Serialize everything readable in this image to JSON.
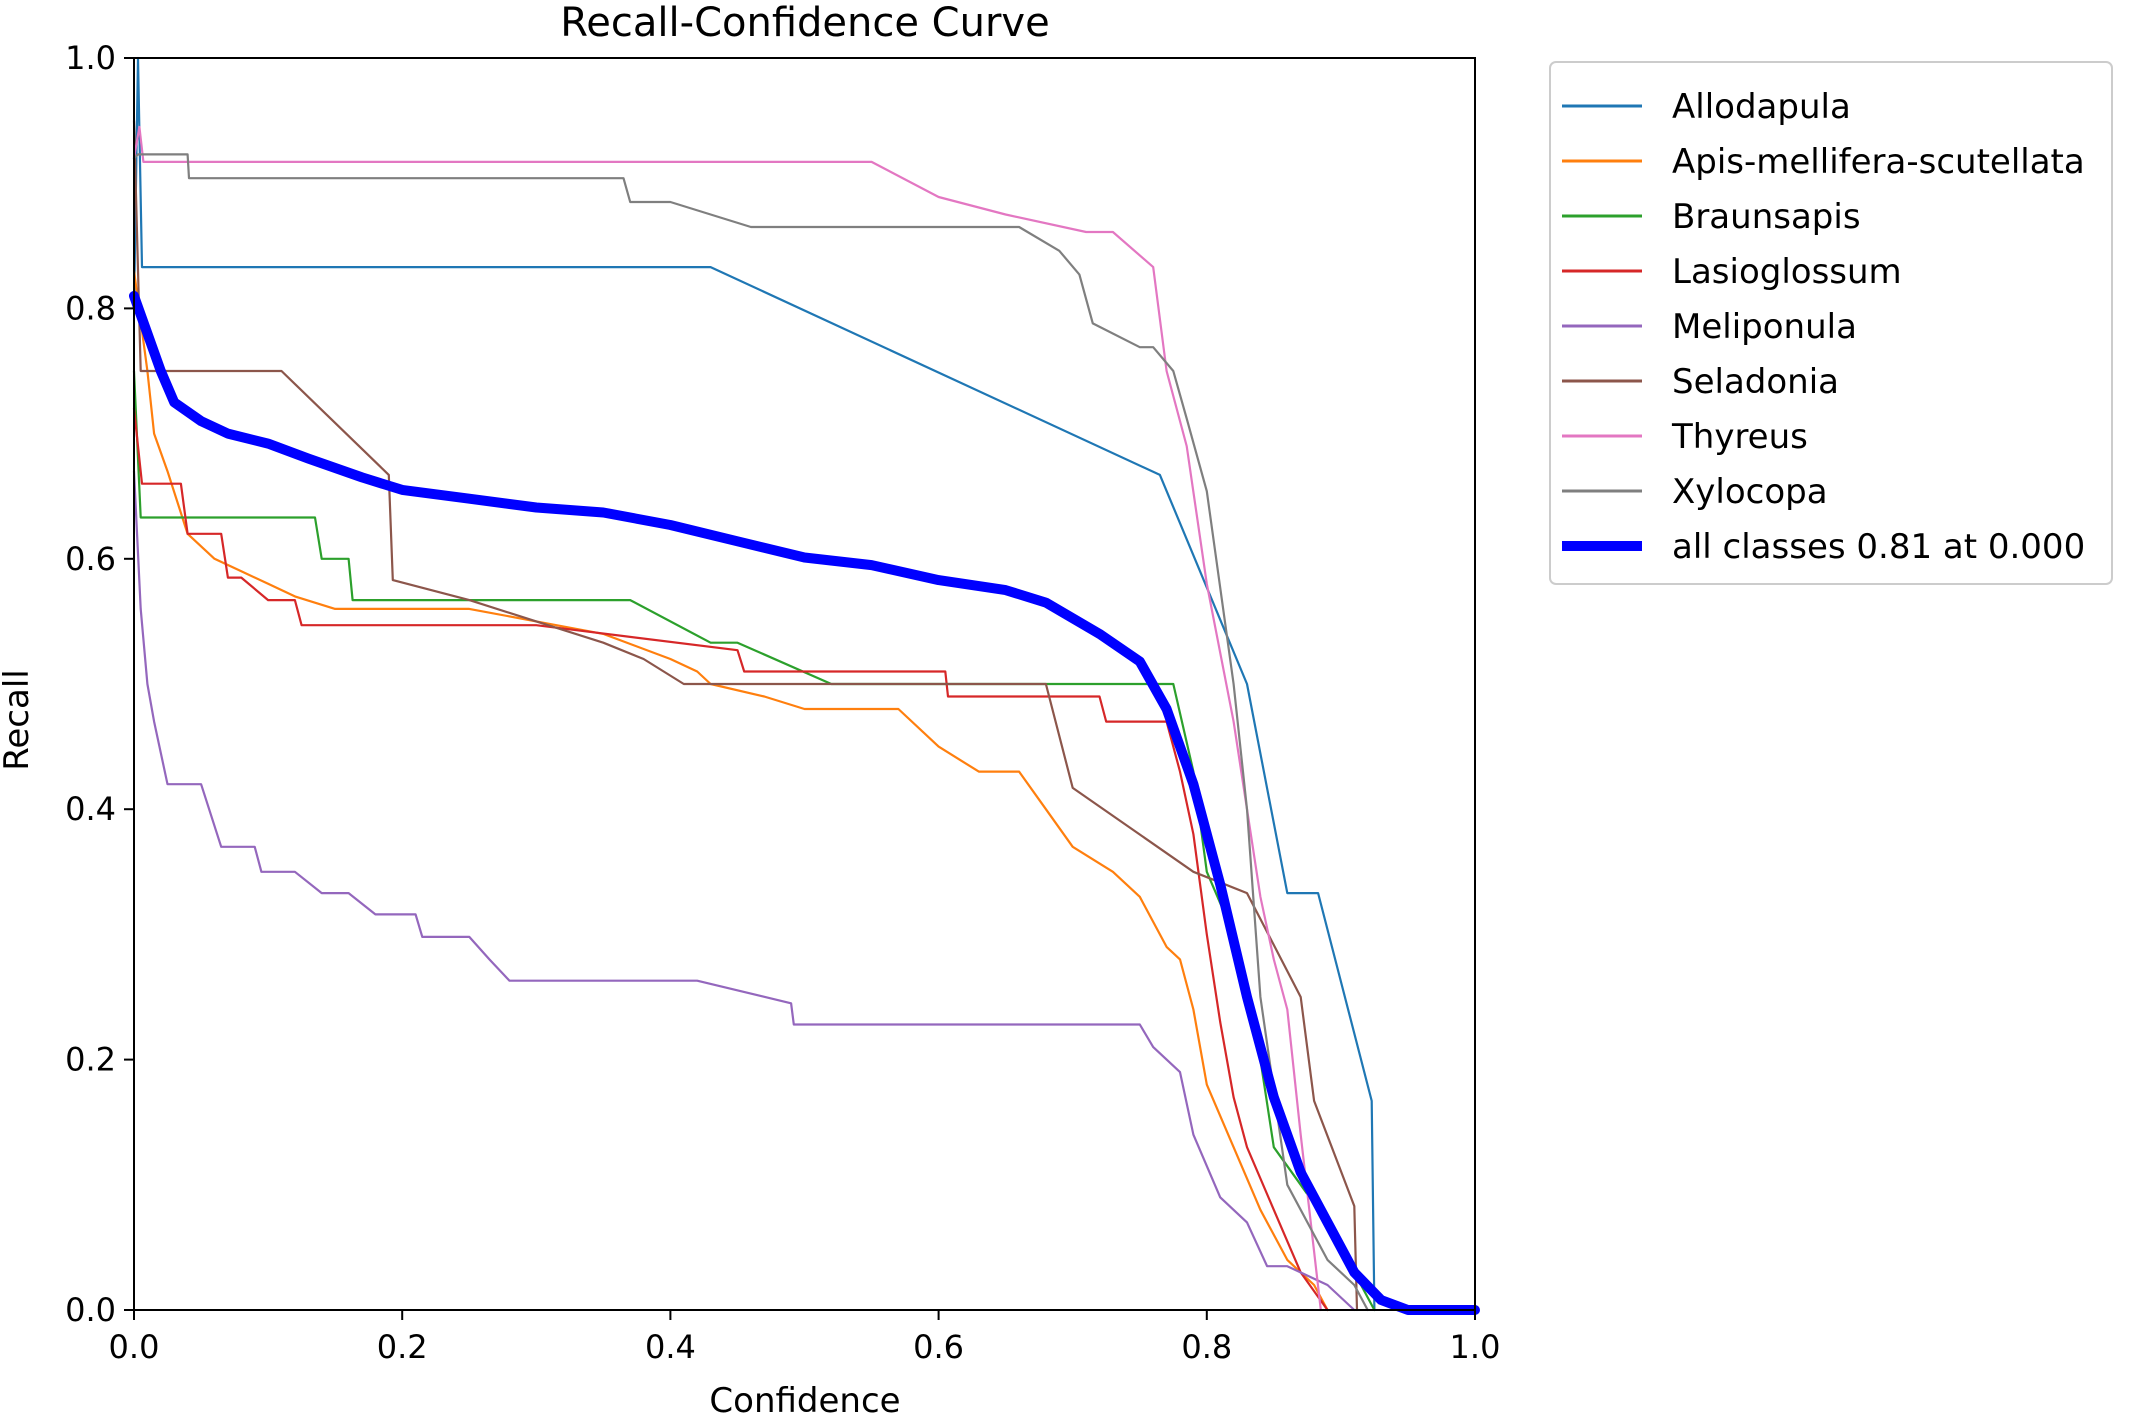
{
  "chart_data": {
    "type": "line",
    "title": "Recall-Confidence Curve",
    "xlabel": "Confidence",
    "ylabel": "Recall",
    "xlim": [
      0,
      1
    ],
    "ylim": [
      0,
      1
    ],
    "xticks": [
      "0.0",
      "0.2",
      "0.4",
      "0.6",
      "0.8",
      "1.0"
    ],
    "yticks": [
      "0.0",
      "0.2",
      "0.4",
      "0.6",
      "0.8",
      "1.0"
    ],
    "grid": false,
    "legend_position": "outside-top-right",
    "series": [
      {
        "name": "Allodapula",
        "color": "#1f77b4",
        "points": [
          [
            0,
            0.8
          ],
          [
            0.003,
            1.0
          ],
          [
            0.006,
            0.833
          ],
          [
            0.43,
            0.833
          ],
          [
            0.765,
            0.667
          ],
          [
            0.83,
            0.5
          ],
          [
            0.86,
            0.333
          ],
          [
            0.883,
            0.333
          ],
          [
            0.923,
            0.167
          ],
          [
            0.925,
            0.0
          ]
        ]
      },
      {
        "name": "Apis-mellifera-scutellata",
        "color": "#ff7f0e",
        "points": [
          [
            0,
            0.83
          ],
          [
            0.01,
            0.75
          ],
          [
            0.015,
            0.7
          ],
          [
            0.025,
            0.67
          ],
          [
            0.04,
            0.62
          ],
          [
            0.06,
            0.6
          ],
          [
            0.08,
            0.59
          ],
          [
            0.1,
            0.58
          ],
          [
            0.12,
            0.57
          ],
          [
            0.15,
            0.56
          ],
          [
            0.25,
            0.56
          ],
          [
            0.3,
            0.55
          ],
          [
            0.35,
            0.54
          ],
          [
            0.4,
            0.52
          ],
          [
            0.42,
            0.51
          ],
          [
            0.43,
            0.5
          ],
          [
            0.47,
            0.49
          ],
          [
            0.5,
            0.48
          ],
          [
            0.57,
            0.48
          ],
          [
            0.6,
            0.45
          ],
          [
            0.63,
            0.43
          ],
          [
            0.66,
            0.43
          ],
          [
            0.68,
            0.4
          ],
          [
            0.7,
            0.37
          ],
          [
            0.73,
            0.35
          ],
          [
            0.75,
            0.33
          ],
          [
            0.77,
            0.29
          ],
          [
            0.78,
            0.28
          ],
          [
            0.79,
            0.24
          ],
          [
            0.8,
            0.18
          ],
          [
            0.82,
            0.13
          ],
          [
            0.84,
            0.08
          ],
          [
            0.86,
            0.04
          ],
          [
            0.88,
            0.02
          ],
          [
            0.89,
            0.0
          ]
        ]
      },
      {
        "name": "Braunsapis",
        "color": "#2ca02c",
        "points": [
          [
            0,
            0.75
          ],
          [
            0.005,
            0.633
          ],
          [
            0.135,
            0.633
          ],
          [
            0.14,
            0.6
          ],
          [
            0.16,
            0.6
          ],
          [
            0.163,
            0.567
          ],
          [
            0.37,
            0.567
          ],
          [
            0.43,
            0.533
          ],
          [
            0.45,
            0.533
          ],
          [
            0.52,
            0.5
          ],
          [
            0.775,
            0.5
          ],
          [
            0.79,
            0.43
          ],
          [
            0.8,
            0.35
          ],
          [
            0.82,
            0.3
          ],
          [
            0.84,
            0.2
          ],
          [
            0.85,
            0.13
          ],
          [
            0.87,
            0.1
          ],
          [
            0.89,
            0.07
          ],
          [
            0.91,
            0.03
          ],
          [
            0.925,
            0.0
          ]
        ]
      },
      {
        "name": "Lasioglossum",
        "color": "#d62728",
        "points": [
          [
            0,
            0.72
          ],
          [
            0.006,
            0.66
          ],
          [
            0.035,
            0.66
          ],
          [
            0.04,
            0.62
          ],
          [
            0.065,
            0.62
          ],
          [
            0.07,
            0.585
          ],
          [
            0.08,
            0.585
          ],
          [
            0.1,
            0.567
          ],
          [
            0.12,
            0.567
          ],
          [
            0.125,
            0.547
          ],
          [
            0.3,
            0.547
          ],
          [
            0.45,
            0.527
          ],
          [
            0.455,
            0.51
          ],
          [
            0.605,
            0.51
          ],
          [
            0.607,
            0.49
          ],
          [
            0.72,
            0.49
          ],
          [
            0.725,
            0.47
          ],
          [
            0.77,
            0.47
          ],
          [
            0.78,
            0.43
          ],
          [
            0.79,
            0.38
          ],
          [
            0.8,
            0.3
          ],
          [
            0.81,
            0.23
          ],
          [
            0.82,
            0.17
          ],
          [
            0.83,
            0.13
          ],
          [
            0.85,
            0.08
          ],
          [
            0.87,
            0.03
          ],
          [
            0.89,
            0.0
          ]
        ]
      },
      {
        "name": "Meliponula",
        "color": "#9467bd",
        "points": [
          [
            0,
            0.67
          ],
          [
            0.005,
            0.56
          ],
          [
            0.01,
            0.5
          ],
          [
            0.015,
            0.47
          ],
          [
            0.025,
            0.42
          ],
          [
            0.05,
            0.42
          ],
          [
            0.065,
            0.37
          ],
          [
            0.09,
            0.37
          ],
          [
            0.095,
            0.35
          ],
          [
            0.12,
            0.35
          ],
          [
            0.14,
            0.333
          ],
          [
            0.16,
            0.333
          ],
          [
            0.18,
            0.316
          ],
          [
            0.21,
            0.316
          ],
          [
            0.215,
            0.298
          ],
          [
            0.25,
            0.298
          ],
          [
            0.265,
            0.28
          ],
          [
            0.28,
            0.263
          ],
          [
            0.42,
            0.263
          ],
          [
            0.49,
            0.245
          ],
          [
            0.492,
            0.228
          ],
          [
            0.75,
            0.228
          ],
          [
            0.76,
            0.21
          ],
          [
            0.78,
            0.19
          ],
          [
            0.79,
            0.14
          ],
          [
            0.81,
            0.09
          ],
          [
            0.83,
            0.07
          ],
          [
            0.845,
            0.035
          ],
          [
            0.86,
            0.035
          ],
          [
            0.89,
            0.02
          ],
          [
            0.91,
            0.0
          ]
        ]
      },
      {
        "name": "Seladonia",
        "color": "#8c564b",
        "points": [
          [
            0,
            0.95
          ],
          [
            0.005,
            0.75
          ],
          [
            0.11,
            0.75
          ],
          [
            0.19,
            0.667
          ],
          [
            0.193,
            0.583
          ],
          [
            0.25,
            0.567
          ],
          [
            0.3,
            0.55
          ],
          [
            0.35,
            0.533
          ],
          [
            0.38,
            0.52
          ],
          [
            0.41,
            0.5
          ],
          [
            0.68,
            0.5
          ],
          [
            0.7,
            0.417
          ],
          [
            0.79,
            0.35
          ],
          [
            0.83,
            0.333
          ],
          [
            0.87,
            0.25
          ],
          [
            0.88,
            0.167
          ],
          [
            0.91,
            0.083
          ],
          [
            0.912,
            0.0
          ]
        ]
      },
      {
        "name": "Thyreus",
        "color": "#e377c2",
        "points": [
          [
            0,
            0.92
          ],
          [
            0.004,
            0.945
          ],
          [
            0.007,
            0.917
          ],
          [
            0.55,
            0.917
          ],
          [
            0.6,
            0.889
          ],
          [
            0.65,
            0.875
          ],
          [
            0.71,
            0.861
          ],
          [
            0.73,
            0.861
          ],
          [
            0.76,
            0.833
          ],
          [
            0.77,
            0.75
          ],
          [
            0.785,
            0.69
          ],
          [
            0.8,
            0.58
          ],
          [
            0.82,
            0.47
          ],
          [
            0.84,
            0.33
          ],
          [
            0.85,
            0.28
          ],
          [
            0.86,
            0.24
          ],
          [
            0.87,
            0.14
          ],
          [
            0.885,
            0.0
          ]
        ]
      },
      {
        "name": "Xylocopa",
        "color": "#7f7f7f",
        "points": [
          [
            0,
            0.92
          ],
          [
            0.003,
            0.923
          ],
          [
            0.04,
            0.923
          ],
          [
            0.041,
            0.904
          ],
          [
            0.365,
            0.904
          ],
          [
            0.37,
            0.885
          ],
          [
            0.4,
            0.885
          ],
          [
            0.46,
            0.865
          ],
          [
            0.66,
            0.865
          ],
          [
            0.69,
            0.846
          ],
          [
            0.705,
            0.827
          ],
          [
            0.715,
            0.788
          ],
          [
            0.75,
            0.769
          ],
          [
            0.76,
            0.769
          ],
          [
            0.775,
            0.75
          ],
          [
            0.785,
            0.712
          ],
          [
            0.8,
            0.654
          ],
          [
            0.81,
            0.577
          ],
          [
            0.82,
            0.5
          ],
          [
            0.83,
            0.4
          ],
          [
            0.84,
            0.25
          ],
          [
            0.86,
            0.1
          ],
          [
            0.89,
            0.04
          ],
          [
            0.91,
            0.02
          ],
          [
            0.92,
            0.0
          ]
        ]
      },
      {
        "name": "all classes 0.81 at 0.000",
        "color": "#0000ff",
        "bold": true,
        "points": [
          [
            0,
            0.81
          ],
          [
            0.01,
            0.78
          ],
          [
            0.02,
            0.75
          ],
          [
            0.03,
            0.725
          ],
          [
            0.05,
            0.71
          ],
          [
            0.07,
            0.7
          ],
          [
            0.1,
            0.692
          ],
          [
            0.13,
            0.68
          ],
          [
            0.17,
            0.665
          ],
          [
            0.2,
            0.655
          ],
          [
            0.25,
            0.648
          ],
          [
            0.3,
            0.641
          ],
          [
            0.35,
            0.637
          ],
          [
            0.4,
            0.627
          ],
          [
            0.45,
            0.614
          ],
          [
            0.5,
            0.601
          ],
          [
            0.55,
            0.595
          ],
          [
            0.6,
            0.583
          ],
          [
            0.65,
            0.575
          ],
          [
            0.68,
            0.565
          ],
          [
            0.72,
            0.54
          ],
          [
            0.75,
            0.518
          ],
          [
            0.77,
            0.48
          ],
          [
            0.79,
            0.42
          ],
          [
            0.81,
            0.34
          ],
          [
            0.83,
            0.25
          ],
          [
            0.85,
            0.17
          ],
          [
            0.87,
            0.11
          ],
          [
            0.89,
            0.07
          ],
          [
            0.91,
            0.03
          ],
          [
            0.93,
            0.008
          ],
          [
            0.95,
            0.0
          ],
          [
            1.0,
            0.0
          ]
        ]
      }
    ]
  }
}
